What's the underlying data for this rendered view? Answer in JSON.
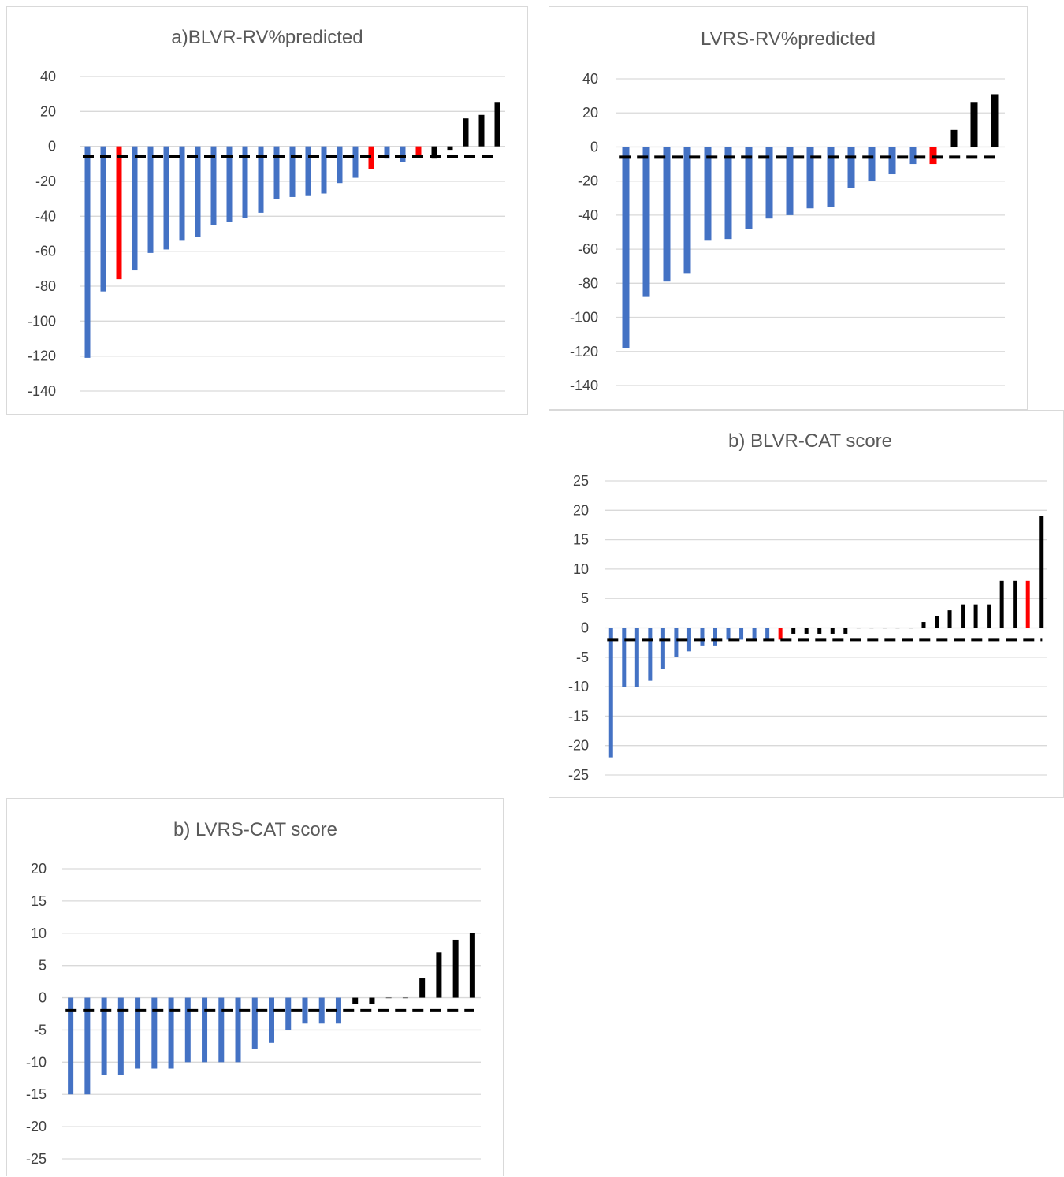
{
  "colors": {
    "decrease": "#4472c4",
    "highlight": "#ff0000",
    "increase": "#000000",
    "gridline": "#d9d9d9",
    "threshold_line": "#000000"
  },
  "chart_data": [
    {
      "type": "bar",
      "title": "a)BLVR-RV%predicted",
      "ylim": [
        -140,
        40
      ],
      "yticks": [
        40,
        20,
        0,
        -20,
        -40,
        -60,
        -80,
        -100,
        -120,
        -140
      ],
      "grid": true,
      "legend": "none",
      "threshold": -6,
      "values": [
        -121,
        -83,
        -76,
        -71,
        -61,
        -59,
        -54,
        -52,
        -45,
        -43,
        -41,
        -38,
        -30,
        -29,
        -28,
        -27,
        -21,
        -18,
        -13,
        -7,
        -9,
        -6,
        -7,
        -2,
        16,
        18,
        25
      ],
      "bar_colors": [
        "decrease",
        "decrease",
        "highlight",
        "decrease",
        "decrease",
        "decrease",
        "decrease",
        "decrease",
        "decrease",
        "decrease",
        "decrease",
        "decrease",
        "decrease",
        "decrease",
        "decrease",
        "decrease",
        "decrease",
        "decrease",
        "highlight",
        "decrease",
        "decrease",
        "highlight",
        "increase",
        "increase",
        "increase",
        "increase",
        "increase"
      ]
    },
    {
      "type": "bar",
      "title": "LVRS-RV%predicted",
      "ylim": [
        -140,
        40
      ],
      "yticks": [
        40,
        20,
        0,
        -20,
        -40,
        -60,
        -80,
        -100,
        -120,
        -140
      ],
      "grid": true,
      "legend": "none",
      "threshold": -6,
      "values": [
        -118,
        -88,
        -79,
        -74,
        -55,
        -54,
        -48,
        -42,
        -40,
        -36,
        -35,
        -24,
        -20,
        -16,
        -10,
        -10,
        10,
        26,
        31
      ],
      "bar_colors": [
        "decrease",
        "decrease",
        "decrease",
        "decrease",
        "decrease",
        "decrease",
        "decrease",
        "decrease",
        "decrease",
        "decrease",
        "decrease",
        "decrease",
        "decrease",
        "decrease",
        "decrease",
        "highlight",
        "increase",
        "increase",
        "increase"
      ]
    },
    {
      "type": "bar",
      "title": "b) BLVR-CAT score",
      "ylim": [
        -25,
        25
      ],
      "yticks": [
        25,
        20,
        15,
        10,
        5,
        0,
        -5,
        -10,
        -15,
        -20,
        -25
      ],
      "grid": true,
      "legend": "none",
      "threshold": -2,
      "values": [
        -22,
        -10,
        -10,
        -9,
        -7,
        -5,
        -4,
        -3,
        -3,
        -2,
        -2,
        -2,
        -2,
        -2,
        -1,
        -1,
        -1,
        -1,
        -1,
        0,
        0,
        0,
        0,
        0,
        1,
        2,
        3,
        4,
        4,
        4,
        8,
        8,
        8,
        19
      ],
      "bar_colors": [
        "decrease",
        "decrease",
        "decrease",
        "decrease",
        "decrease",
        "decrease",
        "decrease",
        "decrease",
        "decrease",
        "decrease",
        "decrease",
        "decrease",
        "decrease",
        "highlight",
        "increase",
        "increase",
        "increase",
        "increase",
        "increase",
        "increase",
        "increase",
        "increase",
        "increase",
        "increase",
        "increase",
        "increase",
        "increase",
        "increase",
        "increase",
        "increase",
        "increase",
        "increase",
        "highlight",
        "increase"
      ]
    },
    {
      "type": "bar",
      "title": "b) LVRS-CAT score",
      "ylim": [
        -25,
        20
      ],
      "yticks": [
        20,
        15,
        10,
        5,
        0,
        -5,
        -10,
        -15,
        -20,
        -25
      ],
      "grid": true,
      "legend": "none",
      "threshold": -2,
      "values": [
        -15,
        -15,
        -12,
        -12,
        -11,
        -11,
        -11,
        -10,
        -10,
        -10,
        -10,
        -8,
        -7,
        -5,
        -4,
        -4,
        -4,
        -1,
        -1,
        0,
        0,
        3,
        7,
        9,
        10
      ],
      "bar_colors": [
        "decrease",
        "decrease",
        "decrease",
        "decrease",
        "decrease",
        "decrease",
        "decrease",
        "decrease",
        "decrease",
        "decrease",
        "decrease",
        "decrease",
        "decrease",
        "decrease",
        "decrease",
        "decrease",
        "decrease",
        "increase",
        "increase",
        "increase",
        "increase",
        "increase",
        "increase",
        "increase",
        "increase"
      ]
    }
  ]
}
